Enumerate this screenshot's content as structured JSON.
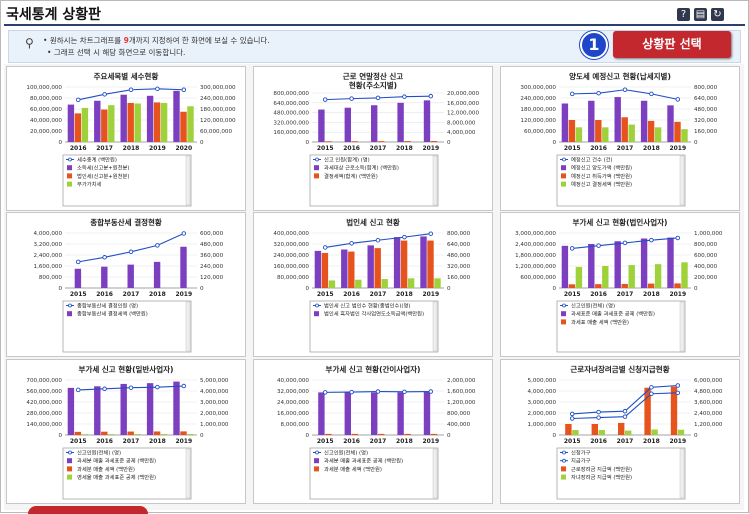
{
  "page": {
    "title": "국세통계 상황판",
    "toolbar_icons": [
      "help-icon",
      "print-icon",
      "refresh-icon"
    ]
  },
  "info": {
    "line1_prefix": "원하시는 차트그래프를 ",
    "line1_highlight": "9",
    "line1_suffix": "개까지 지정하여 한 화면에 보실 수 있습니다.",
    "line2": "그래프 선택 시 해당 화면으로 이동합니다."
  },
  "callout": {
    "number": "1",
    "label": "상황판 선택"
  },
  "colors": {
    "line": "#1f4fc4",
    "purple": "#7b3fc0",
    "orange": "#e6531c",
    "green": "#9ed13a",
    "deeppurple": "#5a2aa8"
  },
  "chart_data": [
    {
      "type": "bar",
      "title": "주요세목별 세수현황",
      "categories": [
        "2016",
        "2017",
        "2018",
        "2019",
        "2020"
      ],
      "left_ticks": [
        "100,000,000",
        "80,000,000",
        "60,000,000",
        "40,000,000",
        "20,000,000",
        "0"
      ],
      "right_ticks": [
        "300,000,000",
        "240,000,000",
        "180,000,000",
        "120,000,000",
        "60,000,000",
        "0"
      ],
      "left_max": 100000000,
      "right_max": 300000000,
      "bars": [
        {
          "name": "소득세(신고분+원천분)",
          "color": "purple",
          "values": [
            68000000,
            75000000,
            86000000,
            84000000,
            93000000
          ]
        },
        {
          "name": "법인세(신고분+원천분)",
          "color": "orange",
          "values": [
            52000000,
            59000000,
            71000000,
            72000000,
            55000000
          ]
        },
        {
          "name": "부가가치세",
          "color": "green",
          "values": [
            62000000,
            67000000,
            70000000,
            71000000,
            65000000
          ]
        }
      ],
      "line": {
        "name": "세수총계 (백만원)",
        "values": [
          230000000,
          260000000,
          285000000,
          290000000,
          285000000
        ]
      },
      "legend": [
        {
          "name": "세수총계 (백만원)",
          "kind": "line",
          "color": "line"
        },
        {
          "name": "소득세(신고분+원천분)",
          "kind": "bar",
          "color": "purple"
        },
        {
          "name": "법인세(신고분+원천분)",
          "kind": "bar",
          "color": "orange"
        },
        {
          "name": "부가가치세",
          "kind": "bar",
          "color": "green"
        }
      ]
    },
    {
      "type": "bar",
      "title": "근로 연말정산 신고 현황(주소지별)",
      "title_lines": [
        "근로 연말정산 신고",
        "현황(주소지별)"
      ],
      "categories": [
        "2015",
        "2016",
        "2017",
        "2018",
        "2019"
      ],
      "left_ticks": [
        "800,000,000",
        "640,000,000",
        "480,000,000",
        "320,000,000",
        "160,000,000",
        "0"
      ],
      "right_ticks": [
        "20,000,000",
        "16,000,000",
        "12,000,000",
        "8,000,000",
        "4,000,000",
        "0"
      ],
      "left_max": 800000000,
      "right_max": 20000000,
      "bars": [
        {
          "name": "과세대상 근로소득(합계) (백만원)",
          "color": "purple",
          "values": [
            530000000,
            560000000,
            600000000,
            640000000,
            680000000
          ]
        },
        {
          "name": "결정세액(합계) (백만원)",
          "color": "orange",
          "values": [
            12000000,
            13000000,
            14000000,
            15000000,
            16000000
          ]
        }
      ],
      "line": {
        "name": "신고 인원(합계) (명)",
        "values": [
          17300000,
          17700000,
          18000000,
          18500000,
          18700000
        ]
      },
      "legend": [
        {
          "name": "신고 인원(합계) (명)",
          "kind": "line",
          "color": "line"
        },
        {
          "name": "과세대상 근로소득(합계) (백만원)",
          "kind": "bar",
          "color": "purple"
        },
        {
          "name": "결정세액(합계) (백만원)",
          "kind": "bar",
          "color": "orange"
        }
      ]
    },
    {
      "type": "bar",
      "title": "양도세 예정신고 현황(납세지별)",
      "categories": [
        "2015",
        "2016",
        "2017",
        "2018",
        "2019"
      ],
      "left_ticks": [
        "300,000,000",
        "240,000,000",
        "180,000,000",
        "120,000,000",
        "60,000,000",
        "0"
      ],
      "right_ticks": [
        "800,000",
        "640,000",
        "480,000",
        "320,000",
        "160,000",
        "0"
      ],
      "left_max": 300000000,
      "right_max": 800000,
      "bars": [
        {
          "name": "예정신고 양도가액 (백만원)",
          "color": "purple",
          "values": [
            210000000,
            225000000,
            245000000,
            225000000,
            200000000
          ]
        },
        {
          "name": "예정신고 취득가액 (백만원)",
          "color": "orange",
          "values": [
            120000000,
            120000000,
            135000000,
            115000000,
            110000000
          ]
        },
        {
          "name": "예정신고 결정세액 (백만원)",
          "color": "green",
          "values": [
            80000000,
            80000000,
            95000000,
            80000000,
            70000000
          ]
        }
      ],
      "line": {
        "name": "예정신고 건수 (건)",
        "values": [
          700000,
          710000,
          760000,
          700000,
          620000
        ]
      },
      "legend": [
        {
          "name": "예정신고 건수 (건)",
          "kind": "line",
          "color": "line"
        },
        {
          "name": "예정신고 양도가액 (백만원)",
          "kind": "bar",
          "color": "purple"
        },
        {
          "name": "예정신고 취득가액 (백만원)",
          "kind": "bar",
          "color": "orange"
        },
        {
          "name": "예정신고 결정세액 (백만원)",
          "kind": "bar",
          "color": "green"
        }
      ]
    },
    {
      "type": "bar",
      "title": "종합부동산세 결정현황",
      "categories": [
        "2015",
        "2016",
        "2017",
        "2018",
        "2019"
      ],
      "left_ticks": [
        "4,000,000",
        "3,200,000",
        "2,400,000",
        "1,600,000",
        "800,000",
        "0"
      ],
      "right_ticks": [
        "600,000",
        "480,000",
        "360,000",
        "240,000",
        "120,000",
        "0"
      ],
      "left_max": 4000000,
      "right_max": 600000,
      "bars": [
        {
          "name": "종합부동산세 결정세액 (백만원)",
          "color": "purple",
          "values": [
            1400000,
            1550000,
            1700000,
            1900000,
            3000000
          ]
        }
      ],
      "line": {
        "name": "종합부동산세 결정인원 (명)",
        "values": [
          285000,
          335000,
          395000,
          465000,
          595000
        ]
      },
      "legend": [
        {
          "name": "종합부동산세 결정인원 (명)",
          "kind": "line",
          "color": "line"
        },
        {
          "name": "종합부동산세 결정세액 (백만원)",
          "kind": "bar",
          "color": "purple"
        }
      ]
    },
    {
      "type": "bar",
      "title": "법인세 신고 현황",
      "categories": [
        "2015",
        "2016",
        "2017",
        "2018",
        "2019"
      ],
      "left_ticks": [
        "400,000,000",
        "320,000,000",
        "240,000,000",
        "160,000,000",
        "80,000,000",
        "0"
      ],
      "right_ticks": [
        "800,000",
        "640,000",
        "480,000",
        "320,000",
        "160,000",
        "0"
      ],
      "left_max": 400000000,
      "right_max": 800000,
      "bars": [
        {
          "name": "법인세 신고 법인수 현황(종법인수)",
          "color": "purple",
          "values": [
            270000000,
            280000000,
            310000000,
            370000000,
            375000000
          ]
        },
        {
          "name": "법인세 흑자법인 각사업연도소득금액(백만원)",
          "color": "orange",
          "values": [
            255000000,
            265000000,
            290000000,
            345000000,
            345000000
          ]
        },
        {
          "name": "",
          "color": "green",
          "values": [
            55000000,
            60000000,
            65000000,
            70000000,
            70000000
          ]
        }
      ],
      "line": {
        "name": "법인세 신고 법인수 현황(종법인수)",
        "values": [
          590000,
          650000,
          695000,
          740000,
          790000
        ]
      },
      "legend": [
        {
          "name": "법인세 신고 법인수 현황(종법인수)(명)",
          "kind": "line",
          "color": "line"
        },
        {
          "name": "법인세 흑자법인 각사업연도소득금액(백만원)",
          "kind": "bar",
          "color": "purple"
        }
      ]
    },
    {
      "type": "bar",
      "title": "부가세 신고 현황(법인사업자)",
      "categories": [
        "2015",
        "2016",
        "2017",
        "2018",
        "2019"
      ],
      "left_ticks": [
        "3,000,000,000",
        "2,400,000,000",
        "1,800,000,000",
        "1,200,000,000",
        "600,000,000",
        "0"
      ],
      "right_ticks": [
        "1,000,000",
        "800,000",
        "600,000",
        "400,000",
        "200,000",
        "0"
      ],
      "left_max": 3000000000,
      "right_max": 1000000,
      "bars": [
        {
          "name": "과세표준 공제 (백만원)",
          "color": "purple",
          "values": [
            2300000000,
            2400000000,
            2550000000,
            2700000000,
            2750000000
          ]
        },
        {
          "name": "과세표준 매출 세액 (백만원)",
          "color": "orange",
          "values": [
            200000000,
            210000000,
            220000000,
            240000000,
            250000000
          ]
        },
        {
          "name": "",
          "color": "green",
          "values": [
            1150000000,
            1200000000,
            1250000000,
            1300000000,
            1400000000
          ]
        }
      ],
      "line": {
        "name": "신고인원(전체) (명)",
        "values": [
          720000,
          770000,
          820000,
          870000,
          910000
        ]
      },
      "legend": [
        {
          "name": "신고인원(전체) (명)",
          "kind": "line",
          "color": "line"
        },
        {
          "name": "과세표준 매출 과세표준 공제 (백만원)",
          "kind": "bar",
          "color": "purple"
        },
        {
          "name": "과세표 매출 세액 (백만원)",
          "kind": "bar",
          "color": "orange"
        }
      ]
    },
    {
      "type": "bar",
      "title": "부가세 신고 현황(일반사업자)",
      "categories": [
        "2015",
        "2016",
        "2017",
        "2018",
        "2019"
      ],
      "left_ticks": [
        "700,000,000",
        "560,000,000",
        "420,000,000",
        "280,000,000",
        "140,000,000",
        "0"
      ],
      "right_ticks": [
        "5,000,000",
        "4,000,000",
        "3,000,000",
        "2,000,000",
        "1,000,000",
        "0"
      ],
      "left_max": 700000000,
      "right_max": 5000000,
      "bars": [
        {
          "name": "과세분 매출 과세표준 공제 (백만원)",
          "color": "purple",
          "values": [
            600000000,
            620000000,
            650000000,
            660000000,
            680000000
          ]
        },
        {
          "name": "과세분 매출 세액 (백만원)",
          "color": "orange",
          "values": [
            40000000,
            42000000,
            44000000,
            45000000,
            46000000
          ]
        },
        {
          "name": "영세율 매출 과세표준 공제 (백만원)",
          "color": "green",
          "values": [
            10000000,
            11000000,
            12000000,
            12000000,
            13000000
          ]
        }
      ],
      "line": {
        "name": "신고인원(전체) (명)",
        "values": [
          4100000,
          4200000,
          4300000,
          4350000,
          4450000
        ]
      },
      "legend": [
        {
          "name": "신고인원(전체) (명)",
          "kind": "line",
          "color": "line"
        },
        {
          "name": "과세분 매출 과세표준 공제 (백만원)",
          "kind": "bar",
          "color": "purple"
        },
        {
          "name": "과세분 매출 세액 (백만원)",
          "kind": "bar",
          "color": "orange"
        },
        {
          "name": "영세율 매출 과세표준 공제 (백만원)",
          "kind": "bar",
          "color": "green"
        }
      ]
    },
    {
      "type": "bar",
      "title": "부가세 신고 현황(간이사업자)",
      "categories": [
        "2015",
        "2016",
        "2017",
        "2018",
        "2019"
      ],
      "left_ticks": [
        "40,000,000",
        "32,000,000",
        "24,000,000",
        "16,000,000",
        "8,000,000",
        "0"
      ],
      "right_ticks": [
        "2,000,000",
        "1,600,000",
        "1,200,000",
        "800,000",
        "400,000",
        "0"
      ],
      "left_max": 40000000,
      "right_max": 2000000,
      "bars": [
        {
          "name": "과세분 매출 과세표준 공제 (백만원)",
          "color": "purple",
          "values": [
            31000000,
            31500000,
            31000000,
            31000000,
            31500000
          ]
        },
        {
          "name": "과세분 매출 세액 (백만원)",
          "color": "orange",
          "values": [
            800000,
            800000,
            800000,
            800000,
            800000
          ]
        }
      ],
      "line": {
        "name": "신고인원(전체) (명)",
        "values": [
          1550000,
          1560000,
          1580000,
          1570000,
          1580000
        ]
      },
      "legend": [
        {
          "name": "신고인원(전체) (명)",
          "kind": "line",
          "color": "line"
        },
        {
          "name": "과세분 매출 과세표준 공제 (백만원)",
          "kind": "bar",
          "color": "purple"
        },
        {
          "name": "과세분 매출 세액 (백만원)",
          "kind": "bar",
          "color": "orange"
        }
      ]
    },
    {
      "type": "bar",
      "title": "근로자녀장려금별 신청지급현황",
      "categories": [
        "2015",
        "2016",
        "2017",
        "2018",
        "2019"
      ],
      "left_ticks": [
        "5,000,000",
        "4,000,000",
        "3,000,000",
        "2,000,000",
        "1,000,000",
        "0"
      ],
      "right_ticks": [
        "6,000,000",
        "4,800,000",
        "3,600,000",
        "2,400,000",
        "1,200,000",
        "0"
      ],
      "left_max": 5000000,
      "right_max": 6000000,
      "bars": [
        {
          "name": "근로장려금 지급액 (백만원)",
          "color": "orange",
          "values": [
            1000000,
            1000000,
            1100000,
            4300000,
            4400000
          ]
        },
        {
          "name": "자녀장려금 지급액 (백만원)",
          "color": "green",
          "values": [
            450000,
            450000,
            400000,
            500000,
            480000
          ]
        }
      ],
      "line": {
        "name": "신청가구",
        "values": [
          2300000,
          2500000,
          2600000,
          5200000,
          5400000
        ]
      },
      "line2": {
        "name": "지급가구",
        "values": [
          1800000,
          1900000,
          2000000,
          4500000,
          4600000
        ]
      },
      "legend": [
        {
          "name": "신청가구",
          "kind": "line",
          "color": "line"
        },
        {
          "name": "지급가구",
          "kind": "line",
          "color": "line"
        },
        {
          "name": "근로장려금 지급액 (백만원)",
          "kind": "bar",
          "color": "orange"
        },
        {
          "name": "자녀장려금 지급액 (백만원)",
          "kind": "bar",
          "color": "green"
        }
      ]
    }
  ]
}
